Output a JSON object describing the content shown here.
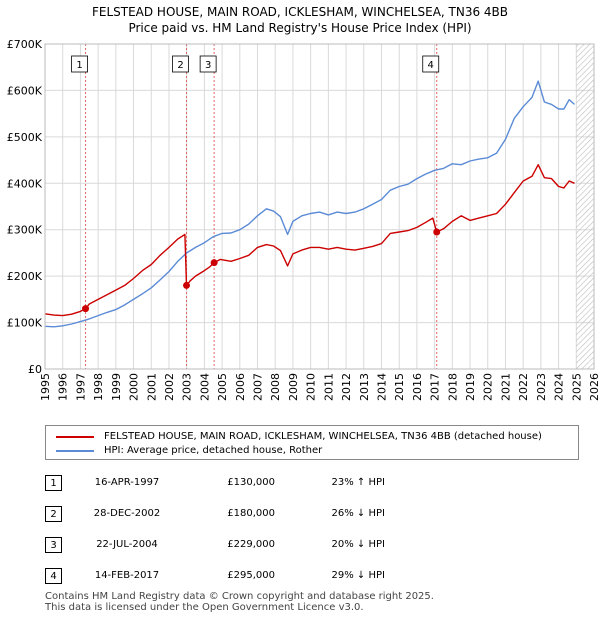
{
  "chart_data": {
    "type": "line",
    "title": "FELSTEAD HOUSE, MAIN ROAD, ICKLESHAM, WINCHELSEA, TN36 4BB",
    "subtitle": "Price paid vs. HM Land Registry's House Price Index (HPI)",
    "xlabel": "",
    "ylabel": "",
    "xlim": [
      1995,
      2026
    ],
    "ylim": [
      0,
      700000
    ],
    "y_ticks": [
      {
        "value": 0,
        "label": "£0"
      },
      {
        "value": 100000,
        "label": "£100K"
      },
      {
        "value": 200000,
        "label": "£200K"
      },
      {
        "value": 300000,
        "label": "£300K"
      },
      {
        "value": 400000,
        "label": "£400K"
      },
      {
        "value": 500000,
        "label": "£500K"
      },
      {
        "value": 600000,
        "label": "£600K"
      },
      {
        "value": 700000,
        "label": "£700K"
      }
    ],
    "x_ticks": [
      "1995",
      "1996",
      "1997",
      "1998",
      "1999",
      "2000",
      "2001",
      "2002",
      "2003",
      "2004",
      "2005",
      "2006",
      "2007",
      "2008",
      "2009",
      "2010",
      "2011",
      "2012",
      "2013",
      "2014",
      "2015",
      "2016",
      "2017",
      "2018",
      "2019",
      "2020",
      "2021",
      "2022",
      "2023",
      "2024",
      "2025",
      "2026"
    ],
    "grid": true,
    "legend_position": "below",
    "series": [
      {
        "name": "FELSTEAD HOUSE, MAIN ROAD, ICKLESHAM, WINCHELSEA, TN36 4BB (detached house)",
        "color": "#cc0000",
        "x": [
          1995.0,
          1995.5,
          1996.0,
          1996.5,
          1997.0,
          1997.29,
          1997.5,
          1998.0,
          1998.5,
          1999.0,
          1999.5,
          2000.0,
          2000.5,
          2001.0,
          2001.5,
          2002.0,
          2002.5,
          2002.9,
          2002.99,
          2003.2,
          2003.5,
          2004.0,
          2004.3,
          2004.55,
          2004.9,
          2005.5,
          2006.0,
          2006.5,
          2007.0,
          2007.5,
          2007.9,
          2008.3,
          2008.7,
          2009.0,
          2009.5,
          2010.0,
          2010.5,
          2011.0,
          2011.5,
          2012.0,
          2012.5,
          2013.0,
          2013.5,
          2014.0,
          2014.5,
          2015.0,
          2015.5,
          2016.0,
          2016.5,
          2016.9,
          2017.12,
          2017.5,
          2018.0,
          2018.5,
          2019.0,
          2019.5,
          2020.0,
          2020.5,
          2021.0,
          2021.5,
          2022.0,
          2022.5,
          2022.85,
          2023.2,
          2023.6,
          2024.0,
          2024.3,
          2024.6,
          2024.9
        ],
        "values": [
          119000,
          116000,
          115000,
          118000,
          124000,
          130000,
          140000,
          150000,
          160000,
          170000,
          180000,
          195000,
          212000,
          225000,
          245000,
          262000,
          280000,
          290000,
          180000,
          190000,
          200000,
          212000,
          220000,
          229000,
          236000,
          232000,
          238000,
          245000,
          262000,
          268000,
          265000,
          255000,
          222000,
          248000,
          256000,
          262000,
          262000,
          258000,
          262000,
          258000,
          256000,
          260000,
          264000,
          270000,
          292000,
          295000,
          298000,
          305000,
          316000,
          325000,
          295000,
          302000,
          318000,
          330000,
          320000,
          325000,
          330000,
          335000,
          355000,
          380000,
          405000,
          415000,
          440000,
          412000,
          410000,
          393000,
          390000,
          405000,
          400000
        ]
      },
      {
        "name": "HPI: Average price, detached house, Rother",
        "color": "#5b8bd6",
        "x": [
          1995.0,
          1995.5,
          1996.0,
          1996.5,
          1997.0,
          1997.5,
          1998.0,
          1998.5,
          1999.0,
          1999.5,
          2000.0,
          2000.5,
          2001.0,
          2001.5,
          2002.0,
          2002.5,
          2003.0,
          2003.5,
          2004.0,
          2004.5,
          2005.0,
          2005.5,
          2006.0,
          2006.5,
          2007.0,
          2007.5,
          2007.9,
          2008.3,
          2008.7,
          2009.0,
          2009.5,
          2010.0,
          2010.5,
          2011.0,
          2011.5,
          2012.0,
          2012.5,
          2013.0,
          2013.5,
          2014.0,
          2014.5,
          2015.0,
          2015.5,
          2016.0,
          2016.5,
          2017.0,
          2017.5,
          2018.0,
          2018.5,
          2019.0,
          2019.5,
          2020.0,
          2020.5,
          2021.0,
          2021.5,
          2022.0,
          2022.5,
          2022.85,
          2023.2,
          2023.6,
          2024.0,
          2024.3,
          2024.6,
          2024.9
        ],
        "values": [
          92000,
          91000,
          93000,
          97000,
          102000,
          108000,
          115000,
          122000,
          128000,
          138000,
          150000,
          162000,
          175000,
          192000,
          210000,
          232000,
          250000,
          262000,
          272000,
          285000,
          292000,
          293000,
          300000,
          312000,
          330000,
          345000,
          340000,
          328000,
          290000,
          318000,
          330000,
          335000,
          338000,
          332000,
          338000,
          335000,
          338000,
          345000,
          355000,
          365000,
          385000,
          393000,
          398000,
          410000,
          420000,
          428000,
          432000,
          442000,
          440000,
          448000,
          452000,
          455000,
          465000,
          495000,
          540000,
          565000,
          585000,
          620000,
          575000,
          570000,
          560000,
          560000,
          580000,
          570000
        ]
      }
    ],
    "sales": [
      {
        "num": "1",
        "year": 1997.29,
        "date": "16-APR-1997",
        "price_value": 130000,
        "price": "£130,000",
        "hpi": "23% ↑ HPI"
      },
      {
        "num": "2",
        "year": 2002.99,
        "date": "28-DEC-2002",
        "price_value": 180000,
        "price": "£180,000",
        "hpi": "26% ↓ HPI"
      },
      {
        "num": "3",
        "year": 2004.55,
        "date": "22-JUL-2004",
        "price_value": 229000,
        "price": "£229,000",
        "hpi": "20% ↓ HPI"
      },
      {
        "num": "4",
        "year": 2017.12,
        "date": "14-FEB-2017",
        "price_value": 295000,
        "price": "£295,000",
        "hpi": "29% ↓ HPI"
      }
    ],
    "hatch_from_year": 2025.0
  },
  "title_line1": "FELSTEAD HOUSE, MAIN ROAD, ICKLESHAM, WINCHELSEA, TN36 4BB",
  "title_line2": "Price paid vs. HM Land Registry's House Price Index (HPI)",
  "legend": {
    "property_label": "FELSTEAD HOUSE, MAIN ROAD, ICKLESHAM, WINCHELSEA, TN36 4BB (detached house)",
    "property_color": "#cc0000",
    "hpi_label": "HPI: Average price, detached house, Rother",
    "hpi_color": "#5b8bd6"
  },
  "footer": {
    "line1": "Contains HM Land Registry data © Crown copyright and database right 2025.",
    "line2": "This data is licensed under the Open Government Licence v3.0."
  }
}
